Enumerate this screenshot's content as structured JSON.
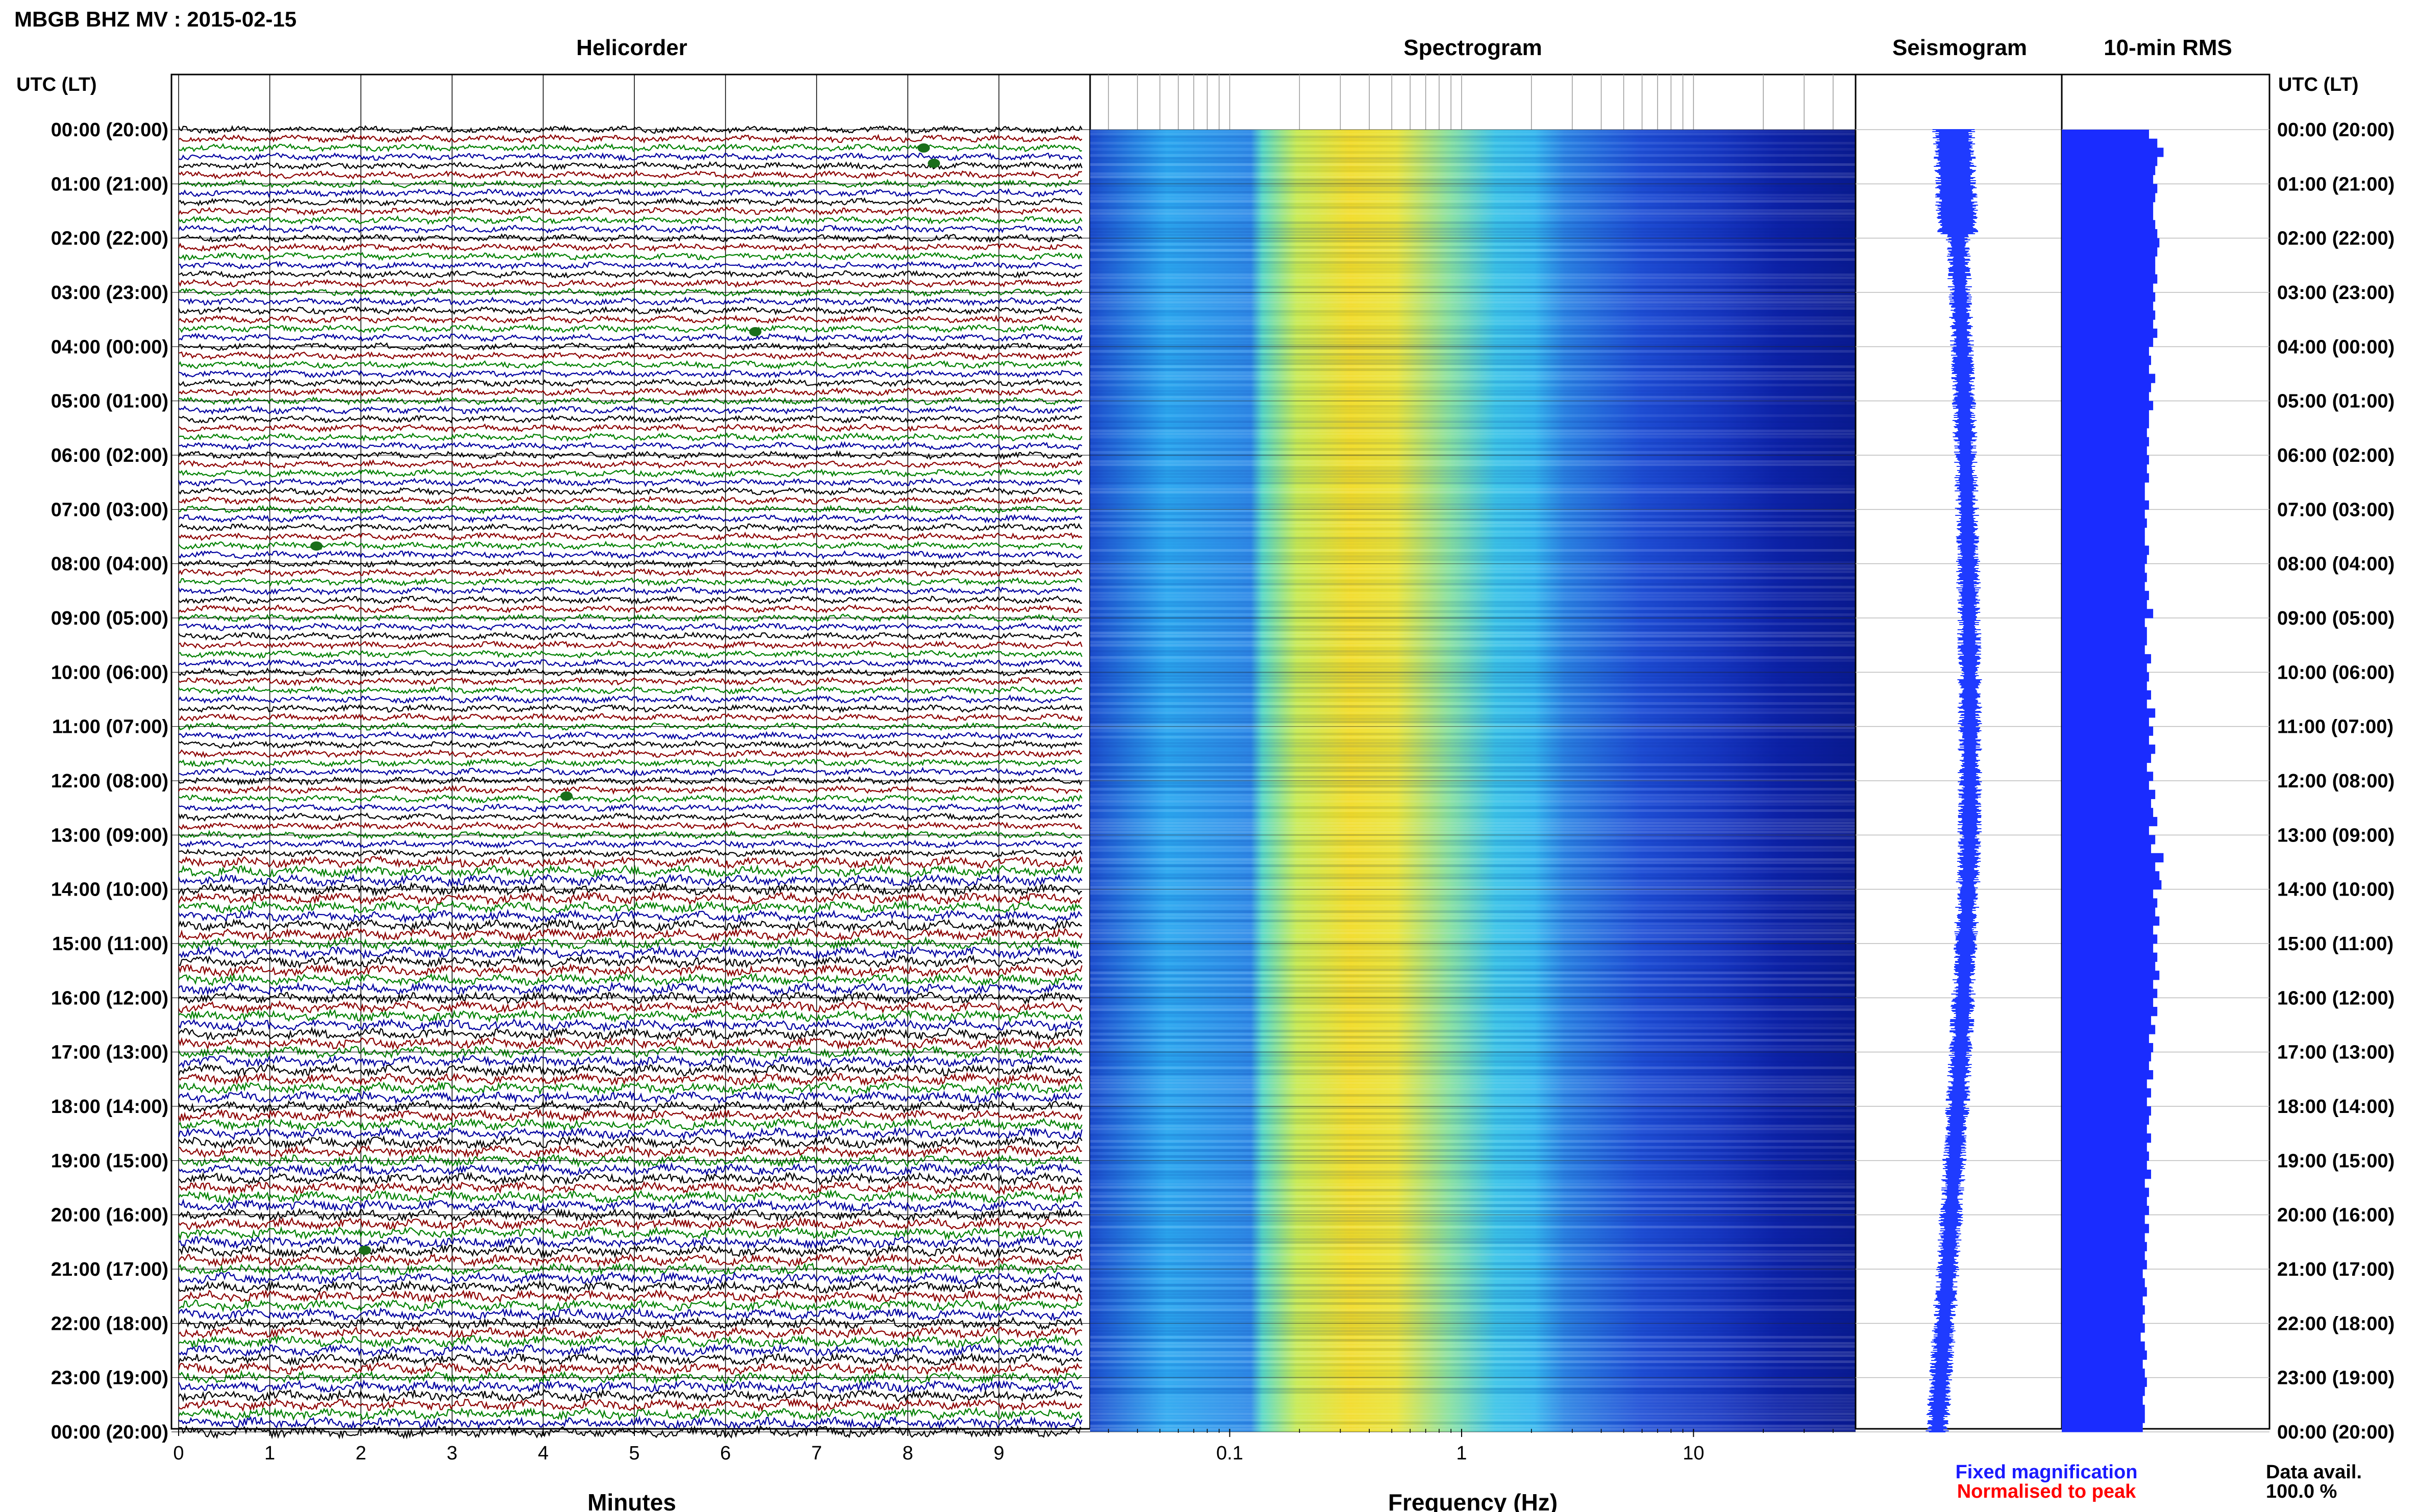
{
  "title": "MBGB BHZ MV : 2015-02-15",
  "panels": {
    "helicorder": "Helicorder",
    "spectrogram": "Spectrogram",
    "seismogram": "Seismogram",
    "rms": "10-min RMS"
  },
  "axis_header": "UTC (LT)",
  "time_labels": [
    "00:00 (20:00)",
    "01:00 (21:00)",
    "02:00 (22:00)",
    "03:00 (23:00)",
    "04:00 (00:00)",
    "05:00 (01:00)",
    "06:00 (02:00)",
    "07:00 (03:00)",
    "08:00 (04:00)",
    "09:00 (05:00)",
    "10:00 (06:00)",
    "11:00 (07:00)",
    "12:00 (08:00)",
    "13:00 (09:00)",
    "14:00 (10:00)",
    "15:00 (11:00)",
    "16:00 (12:00)",
    "17:00 (13:00)",
    "18:00 (14:00)",
    "19:00 (15:00)",
    "20:00 (16:00)",
    "21:00 (17:00)",
    "22:00 (18:00)",
    "23:00 (19:00)",
    "00:00 (20:00)"
  ],
  "minutes_axis": {
    "label": "Minutes",
    "ticks": [
      "0",
      "1",
      "2",
      "3",
      "4",
      "5",
      "6",
      "7",
      "8",
      "9"
    ]
  },
  "frequency_axis": {
    "label": "Frequency (Hz)",
    "ticks": [
      "0.1",
      "1",
      "10"
    ],
    "scale": "log"
  },
  "legend": {
    "fixed": "Fixed magnification",
    "normalised": "Normalised to peak",
    "fixed_color": "#1a1aff",
    "normalised_color": "#ff0000"
  },
  "availability": {
    "label": "Data avail.",
    "value": "100.0 %"
  },
  "colors": {
    "trace_cycle": [
      "#000000",
      "#8b0000",
      "#008000",
      "#0000a0"
    ],
    "seismogram": "#1f3bff",
    "rms_bar": "#1a2cff"
  },
  "chart_data": [
    {
      "type": "line",
      "title": "Helicorder",
      "xlabel": "Minutes",
      "xlim": [
        0,
        10
      ],
      "rows": 144,
      "rows_per_hour": 6,
      "ylabel": "UTC (LT)"
    },
    {
      "type": "heatmap",
      "title": "Spectrogram",
      "xlabel": "Frequency (Hz)",
      "xscale": "log",
      "xlim": [
        0.025,
        50
      ],
      "peak_frequency_hz": 0.3,
      "ylabel": "UTC (LT)"
    },
    {
      "type": "line",
      "title": "Seismogram",
      "ylabel": "UTC (LT)"
    },
    {
      "type": "bar",
      "title": "10-min RMS",
      "ylabel": "UTC (LT)",
      "values": [
        0.42,
        0.46,
        0.49,
        0.46,
        0.45,
        0.44,
        0.46,
        0.45,
        0.44,
        0.44,
        0.45,
        0.46,
        0.47,
        0.46,
        0.45,
        0.45,
        0.46,
        0.44,
        0.45,
        0.44,
        0.45,
        0.44,
        0.46,
        0.44,
        0.42,
        0.43,
        0.42,
        0.45,
        0.43,
        0.42,
        0.44,
        0.42,
        0.42,
        0.41,
        0.42,
        0.41,
        0.42,
        0.41,
        0.42,
        0.4,
        0.4,
        0.42,
        0.4,
        0.41,
        0.4,
        0.4,
        0.42,
        0.41,
        0.4,
        0.41,
        0.4,
        0.42,
        0.41,
        0.44,
        0.4,
        0.41,
        0.41,
        0.4,
        0.43,
        0.41,
        0.42,
        0.41,
        0.43,
        0.41,
        0.45,
        0.42,
        0.44,
        0.42,
        0.45,
        0.43,
        0.41,
        0.44,
        0.42,
        0.45,
        0.43,
        0.44,
        0.46,
        0.42,
        0.45,
        0.43,
        0.49,
        0.45,
        0.47,
        0.48,
        0.44,
        0.46,
        0.45,
        0.47,
        0.44,
        0.46,
        0.44,
        0.46,
        0.45,
        0.47,
        0.44,
        0.46,
        0.44,
        0.46,
        0.43,
        0.45,
        0.42,
        0.44,
        0.43,
        0.42,
        0.44,
        0.41,
        0.43,
        0.41,
        0.43,
        0.42,
        0.41,
        0.43,
        0.41,
        0.42,
        0.41,
        0.43,
        0.4,
        0.42,
        0.41,
        0.42,
        0.4,
        0.42,
        0.4,
        0.41,
        0.4,
        0.41,
        0.39,
        0.4,
        0.41,
        0.39,
        0.4,
        0.39,
        0.4,
        0.38,
        0.4,
        0.41,
        0.39,
        0.4,
        0.41,
        0.4,
        0.39,
        0.4,
        0.4,
        0.39
      ]
    }
  ]
}
